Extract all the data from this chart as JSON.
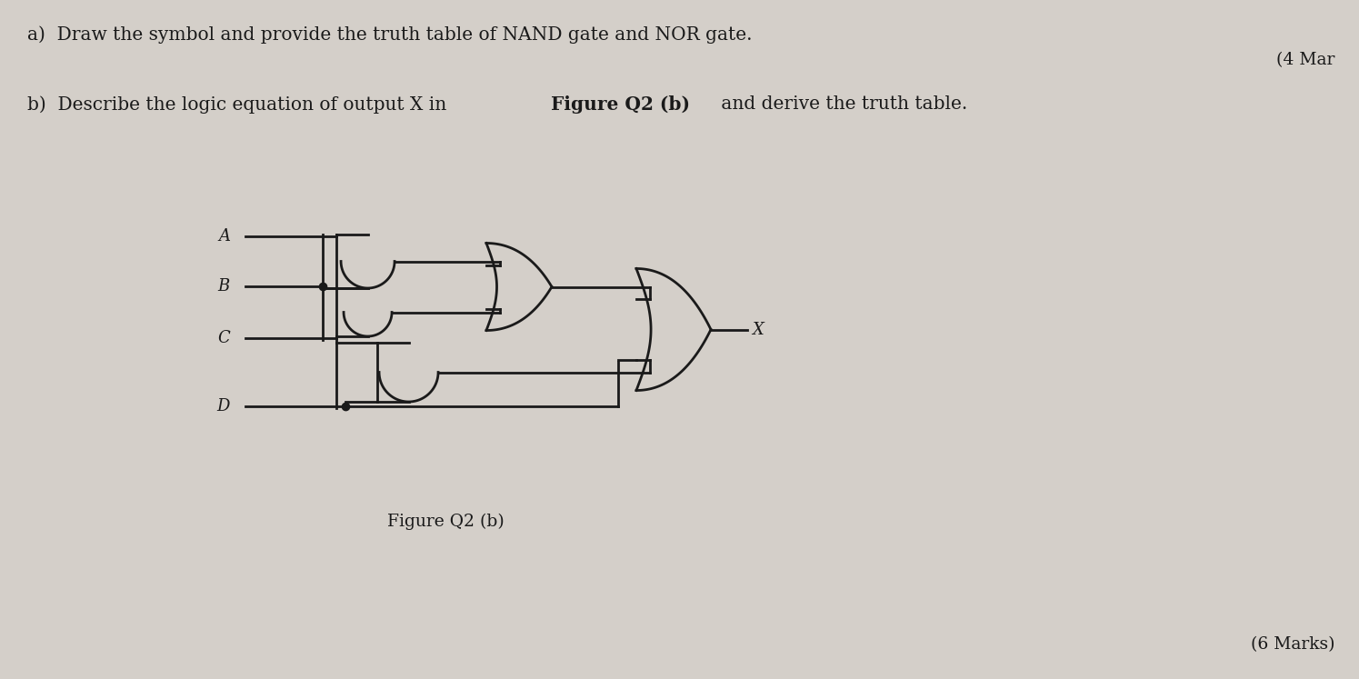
{
  "bg_color": "#d4cfc9",
  "line_color": "#1a1a1a",
  "text_color": "#1a1a1a",
  "title_a": "a)  Draw the symbol and provide the truth table of NAND gate and NOR gate.",
  "marks_a": "(4 Mar",
  "title_b": "b)  Describe the logic equation of output X in ",
  "title_b_bold": "Figure Q2 (b)",
  "title_b_rest": " and derive the truth table.",
  "marks_b": "(6 Marks)",
  "figure_label": "Figure Q2 (b)",
  "inputs": [
    "A",
    "B",
    "C",
    "D"
  ],
  "output_label": "X"
}
